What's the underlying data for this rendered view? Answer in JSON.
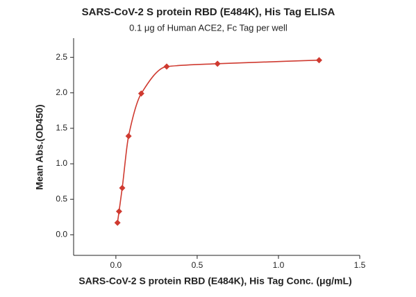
{
  "chart_data": {
    "type": "scatter",
    "title": "SARS-CoV-2 S protein RBD (E484K), His Tag ELISA",
    "subtitle": "0.1 μg of Human ACE2, Fc Tag per well",
    "x_label": "SARS-CoV-2 S protein RBD (E484K), His Tag Conc. (μg/mL)",
    "y_label": "Mean Abs.(OD450)",
    "series": [
      {
        "color": "#cf3a30",
        "x": [
          0.0098,
          0.0195,
          0.039,
          0.078,
          0.156,
          0.3125,
          0.625,
          1.25
        ],
        "values": [
          0.17,
          0.33,
          0.66,
          1.39,
          1.99,
          2.37,
          2.41,
          2.46
        ]
      }
    ],
    "xlim": [
      -0.26,
      1.5
    ],
    "xticks": [
      {
        "value": 0,
        "label": "0.0"
      },
      0.5,
      {
        "value": 1,
        "label": "1.0"
      },
      1.5
    ],
    "ylim": [
      -0.29,
      2.77
    ],
    "yticks": [
      {
        "value": 0,
        "label": "0.0"
      },
      0.5,
      {
        "value": 1,
        "label": "1.0"
      },
      1.5,
      {
        "value": 2,
        "label": "2.0"
      },
      2.5
    ]
  }
}
